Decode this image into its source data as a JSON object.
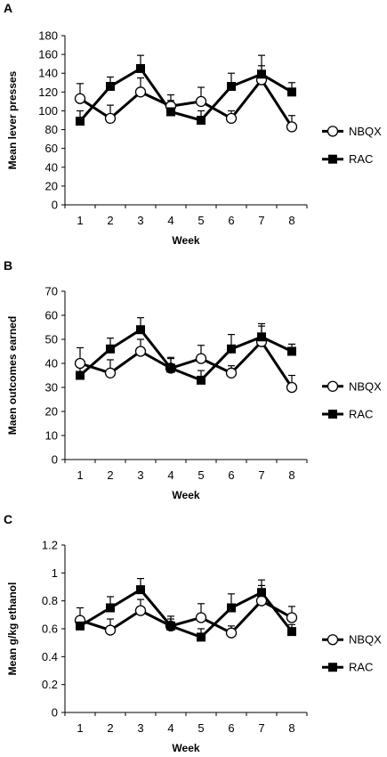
{
  "chart_data": [
    {
      "type": "line",
      "panel": "A",
      "categories": [
        "1",
        "2",
        "3",
        "4",
        "5",
        "6",
        "7",
        "8"
      ],
      "xlabel": "Week",
      "ylabel": "Mean lever presses",
      "ylim": [
        0,
        180
      ],
      "yticks": [
        0,
        20,
        40,
        60,
        80,
        100,
        120,
        140,
        160,
        180
      ],
      "series": [
        {
          "name": "NBQX",
          "marker": "open-circle",
          "values": [
            113,
            92,
            120,
            105,
            110,
            92,
            133,
            83
          ],
          "err": [
            16,
            14,
            15,
            12,
            15,
            8,
            15,
            12
          ]
        },
        {
          "name": "RAC",
          "marker": "filled-square",
          "values": [
            89,
            126,
            145,
            99,
            90,
            126,
            139,
            120
          ],
          "err": [
            11,
            10,
            14,
            12,
            10,
            14,
            20,
            10
          ]
        }
      ]
    },
    {
      "type": "line",
      "panel": "B",
      "categories": [
        "1",
        "2",
        "3",
        "4",
        "5",
        "6",
        "7",
        "8"
      ],
      "xlabel": "Week",
      "ylabel": "Maen outcomes earned",
      "ylim": [
        0,
        70
      ],
      "yticks": [
        0,
        10,
        20,
        30,
        40,
        50,
        60,
        70
      ],
      "series": [
        {
          "name": "NBQX",
          "marker": "open-circle",
          "values": [
            40,
            36,
            45,
            38,
            42,
            36,
            49,
            30
          ],
          "err": [
            6.5,
            5.5,
            5,
            4,
            5.5,
            3,
            6.5,
            5
          ]
        },
        {
          "name": "RAC",
          "marker": "filled-square",
          "values": [
            35,
            46,
            54,
            38,
            33,
            46,
            51,
            45
          ],
          "err": [
            4,
            4.5,
            5,
            4.5,
            4,
            6,
            5.5,
            3
          ]
        }
      ]
    },
    {
      "type": "line",
      "panel": "C",
      "categories": [
        "1",
        "2",
        "3",
        "4",
        "5",
        "6",
        "7",
        "8"
      ],
      "xlabel": "Week",
      "ylabel": "Mean g/kg ethanol",
      "ylim": [
        0,
        1.2
      ],
      "yticks": [
        "0",
        "0.2",
        "0.4",
        "0.6",
        "0.8",
        "1",
        "1.2"
      ],
      "series": [
        {
          "name": "NBQX",
          "marker": "open-circle",
          "values": [
            0.66,
            0.59,
            0.73,
            0.62,
            0.68,
            0.57,
            0.8,
            0.68
          ],
          "err": [
            0.09,
            0.08,
            0.08,
            0.07,
            0.1,
            0.05,
            0.11,
            0.08
          ]
        },
        {
          "name": "RAC",
          "marker": "filled-square",
          "values": [
            0.62,
            0.75,
            0.88,
            0.62,
            0.54,
            0.75,
            0.86,
            0.58
          ],
          "err": [
            0.06,
            0.08,
            0.08,
            0.05,
            0.06,
            0.1,
            0.09,
            0.05
          ]
        }
      ]
    }
  ]
}
